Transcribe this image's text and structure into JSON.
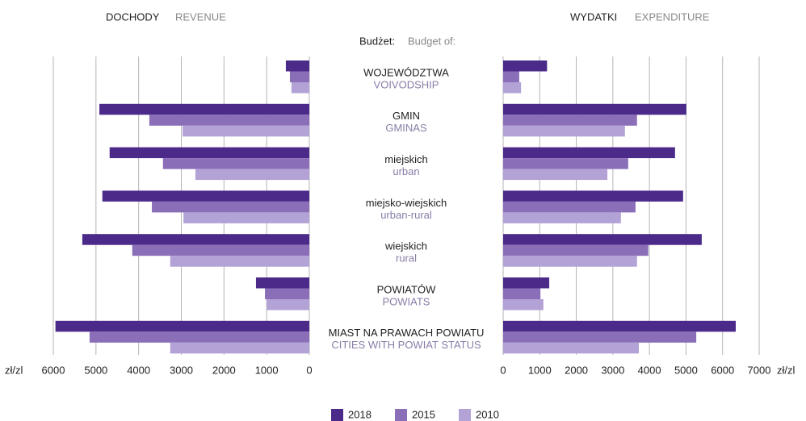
{
  "header": {
    "budget": "Budżet:",
    "budget_en": "Budget of:"
  },
  "categories": [
    "WOJEWÓDZTWA",
    "GMIN",
    "miejskich",
    "miejsko-wiejskich",
    "wiejskich",
    "POWIATÓW",
    "MIAST NA PRAWACH POWIATU"
  ],
  "categories_en": [
    "VOIVODSHIP",
    "GMINAS",
    "urban",
    "urban-rural",
    "rural",
    "POWIATS",
    "CITIES WITH POWIAT STATUS"
  ],
  "chart_data": [
    {
      "type": "bar",
      "orientation": "horizontal",
      "reverse": true,
      "title": "DOCHODY",
      "subtitle": "REVENUE",
      "xlabel": "zł/zl",
      "xlim": [
        0,
        6000
      ],
      "xticks": [
        0,
        1000,
        2000,
        3000,
        4000,
        5000,
        6000
      ],
      "grid": true,
      "series": [
        {
          "name": "2018",
          "color": "#4b2a8a",
          "values": [
            550,
            4920,
            4680,
            4850,
            5320,
            1250,
            5950
          ]
        },
        {
          "name": "2015",
          "color": "#8a6fb8",
          "values": [
            455,
            3750,
            3430,
            3690,
            4150,
            1040,
            5150
          ]
        },
        {
          "name": "2010",
          "color": "#b3a2d6",
          "values": [
            420,
            2970,
            2670,
            2950,
            3260,
            1000,
            3260
          ]
        }
      ]
    },
    {
      "type": "bar",
      "orientation": "horizontal",
      "reverse": false,
      "title": "WYDATKI",
      "subtitle": "EXPENDITURE",
      "xlabel": "zł/zl",
      "xlim": [
        0,
        7000
      ],
      "xticks": [
        0,
        1000,
        2000,
        3000,
        4000,
        5000,
        6000,
        7000
      ],
      "grid": true,
      "series": [
        {
          "color": "#4b2a8a",
          "values": [
            1200,
            5010,
            4700,
            4920,
            5430,
            1260,
            6360
          ]
        },
        {
          "color": "#8a6fb8",
          "values": [
            440,
            3660,
            3420,
            3620,
            3970,
            1020,
            5280
          ]
        },
        {
          "color": "#b3a2d6",
          "values": [
            490,
            3330,
            2850,
            3220,
            3660,
            1100,
            3710
          ]
        }
      ]
    }
  ]
}
